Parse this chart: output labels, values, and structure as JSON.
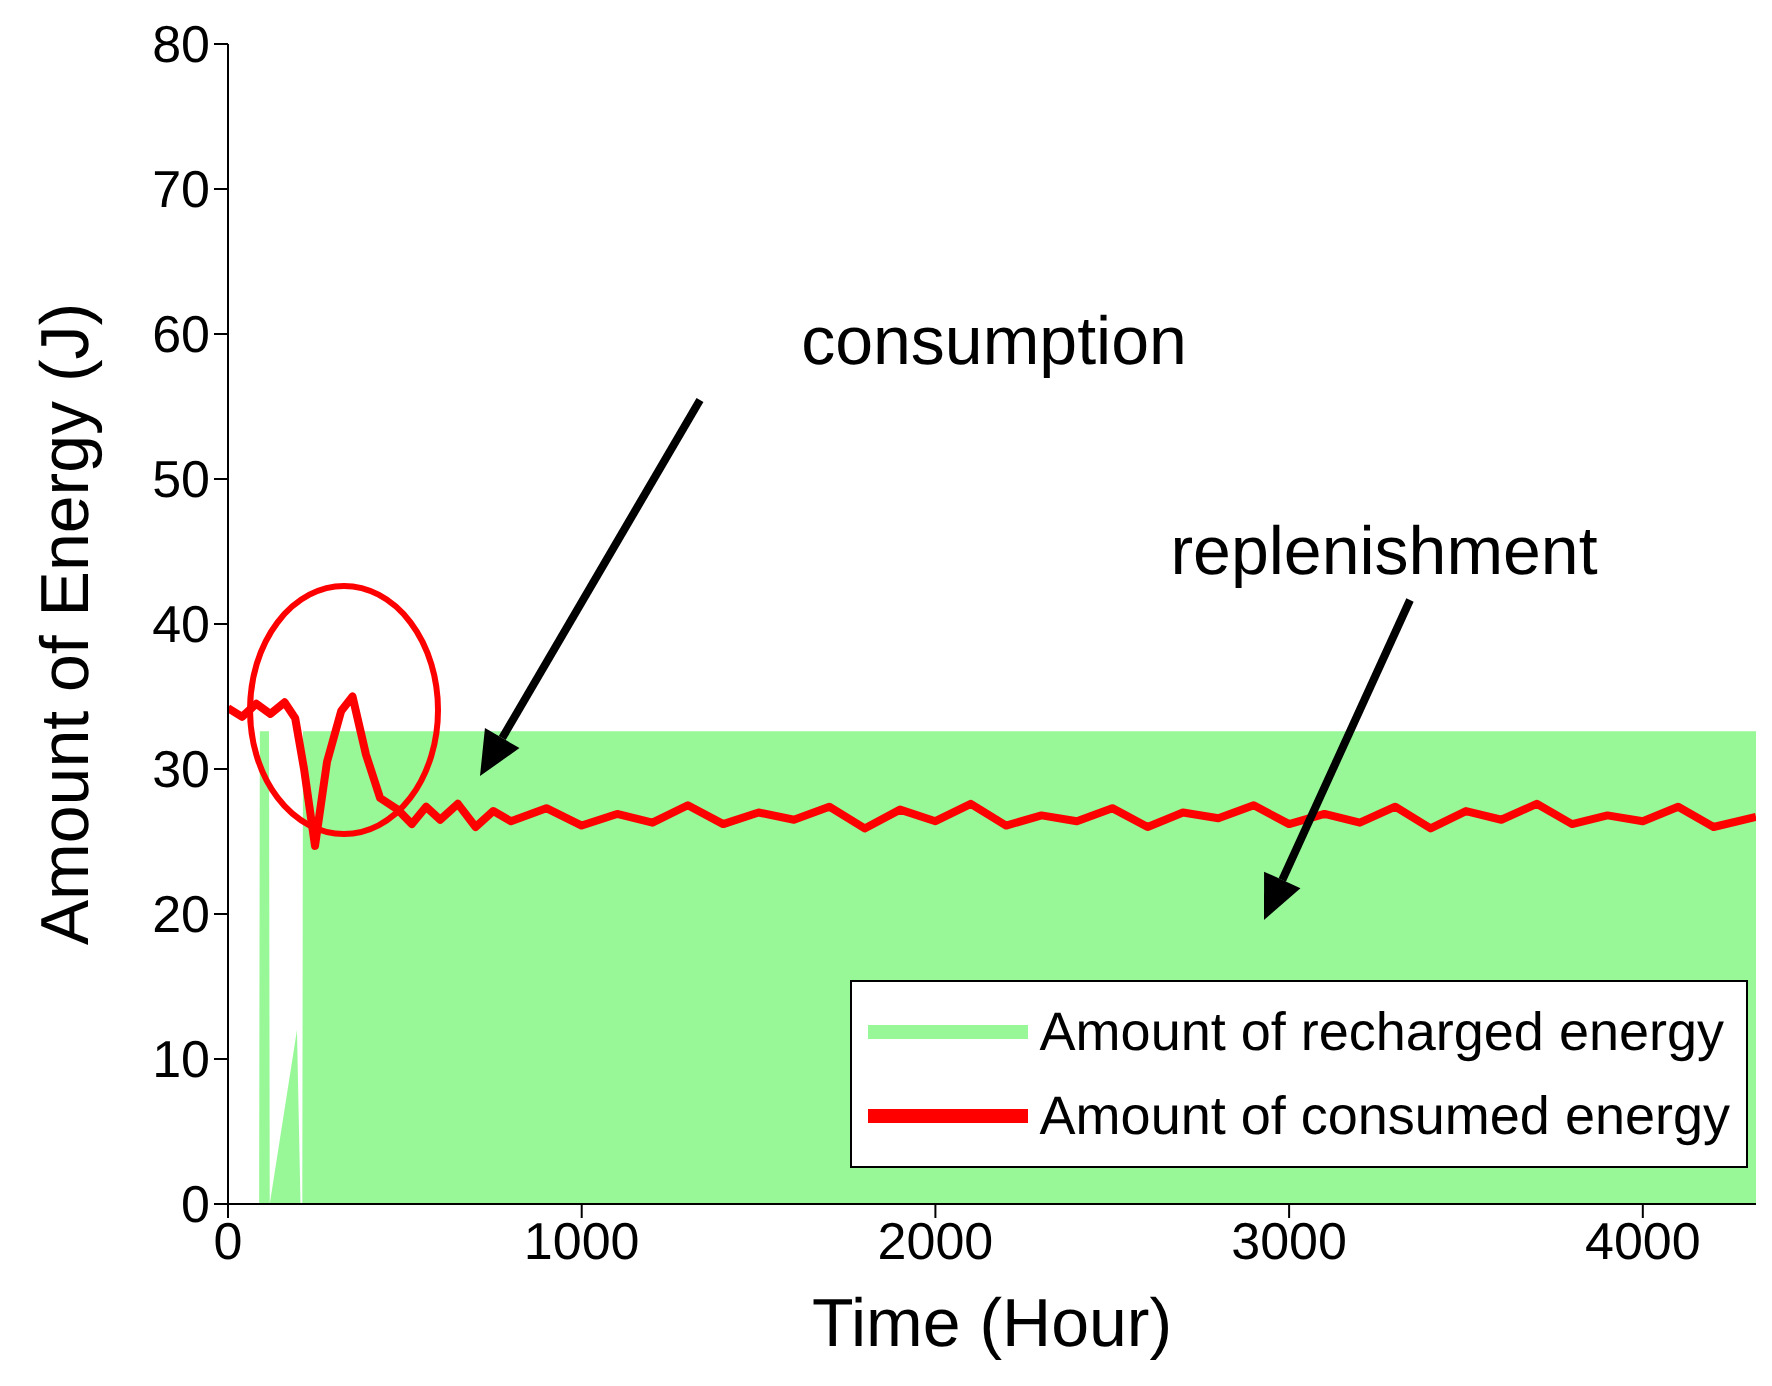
{
  "chart_data": {
    "type": "line",
    "xlabel": "Time (Hour)",
    "ylabel": "Amount of Energy (J)",
    "xlim": [
      0,
      4320
    ],
    "ylim": [
      0,
      80
    ],
    "xticks": [
      0,
      1000,
      2000,
      3000,
      4000
    ],
    "yticks": [
      0,
      10,
      20,
      30,
      40,
      50,
      60,
      70,
      80
    ],
    "grid": false,
    "legend": "bottom right",
    "line_style": "solid",
    "marker": "none",
    "series": [
      {
        "name": "Amount of recharged energy",
        "type": "area",
        "color": "#98f898",
        "x": [
          0,
          88,
          90,
          116,
          118,
          195,
          205,
          210,
          212,
          4320
        ],
        "values": [
          0,
          0,
          32.6,
          32.6,
          0,
          12,
          0,
          0,
          32.6,
          32.6
        ]
      },
      {
        "name": "Amount of consumed energy",
        "color": "#ff0000",
        "x": [
          0,
          40,
          80,
          120,
          160,
          190,
          215,
          246,
          280,
          320,
          352,
          390,
          430,
          480,
          520,
          560,
          600,
          650,
          700,
          750,
          800,
          900,
          1000,
          1100,
          1200,
          1300,
          1400,
          1500,
          1600,
          1700,
          1800,
          1900,
          2000,
          2100,
          2200,
          2300,
          2400,
          2500,
          2600,
          2700,
          2800,
          2900,
          3000,
          3100,
          3200,
          3300,
          3400,
          3500,
          3600,
          3700,
          3800,
          3900,
          4000,
          4100,
          4200,
          4320
        ],
        "values": [
          34.2,
          33.6,
          34.5,
          33.8,
          34.6,
          33.5,
          30,
          24.7,
          30.5,
          34,
          35,
          31,
          28,
          27.2,
          26.2,
          27.4,
          26.5,
          27.6,
          26,
          27.1,
          26.4,
          27.3,
          26.1,
          26.9,
          26.3,
          27.5,
          26.2,
          27,
          26.5,
          27.4,
          25.9,
          27.2,
          26.4,
          27.6,
          26.1,
          26.8,
          26.4,
          27.3,
          26,
          27,
          26.6,
          27.5,
          26.2,
          26.9,
          26.3,
          27.4,
          25.9,
          27.1,
          26.5,
          27.6,
          26.2,
          26.8,
          26.4,
          27.4,
          26,
          26.7
        ]
      }
    ],
    "annotations": [
      "consumption",
      "replenishment"
    ]
  }
}
